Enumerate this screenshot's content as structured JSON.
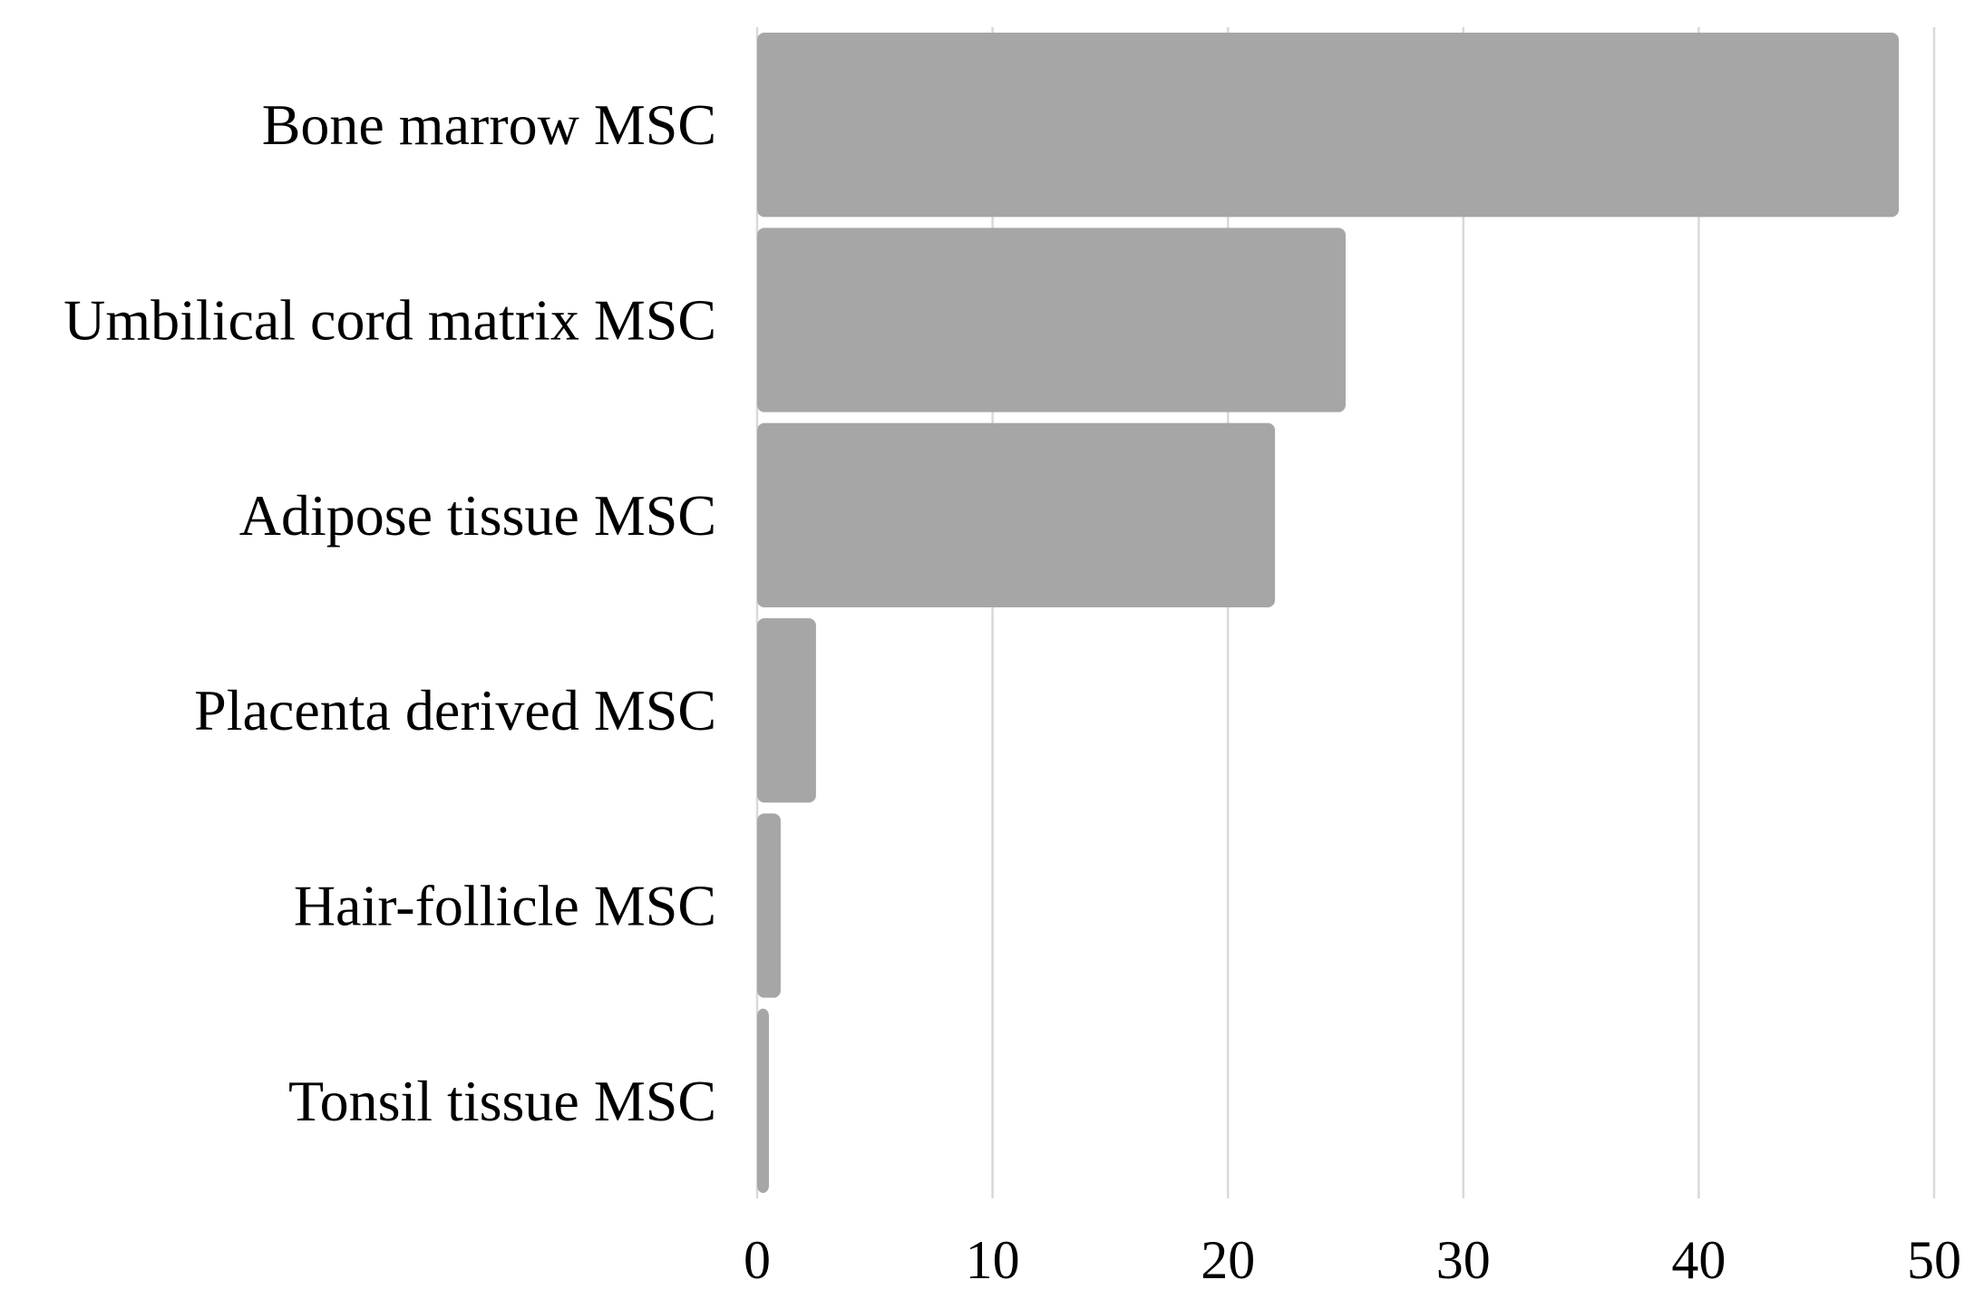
{
  "chart_data": {
    "type": "bar",
    "orientation": "horizontal",
    "title": "",
    "xlabel": "",
    "ylabel": "",
    "categories": [
      "Bone marrow MSC",
      "Umbilical cord matrix MSC",
      "Adipose tissue MSC",
      "Placenta derived MSC",
      "Hair-follicle MSC",
      "Tonsil tissue MSC"
    ],
    "values": [
      48.5,
      25,
      22,
      2.5,
      1,
      0.5
    ],
    "xlim": [
      0,
      50
    ],
    "ticks": [
      0,
      10,
      20,
      30,
      40,
      50
    ],
    "tick_labels": [
      "0",
      "10",
      "20",
      "30",
      "40",
      "50"
    ],
    "grid": "vertical",
    "legend": "none",
    "colors": {
      "bar": "#a6a6a6",
      "grid": "#d9d9d9",
      "text": "#000000"
    }
  }
}
